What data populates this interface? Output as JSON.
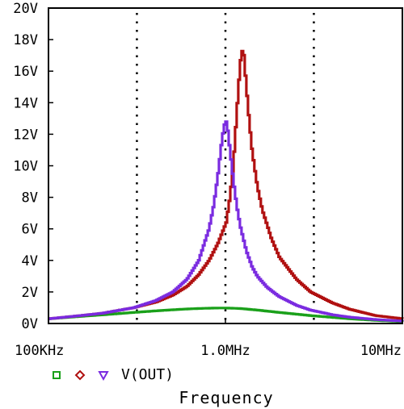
{
  "chart_data": {
    "type": "line",
    "x_scale": "log",
    "x_unit": "Hz",
    "xlim": [
      100000,
      10000000
    ],
    "ylim": [
      0,
      20
    ],
    "y_unit": "V",
    "xlabel": "Frequency",
    "x_ticks": [
      {
        "value": 100000,
        "label": "100KHz"
      },
      {
        "value": 1000000,
        "label": "1.0MHz"
      },
      {
        "value": 10000000,
        "label": "10MHz"
      }
    ],
    "y_ticks": [
      {
        "value": 0,
        "label": "0V"
      },
      {
        "value": 2,
        "label": "2V"
      },
      {
        "value": 4,
        "label": "4V"
      },
      {
        "value": 6,
        "label": "6V"
      },
      {
        "value": 8,
        "label": "8V"
      },
      {
        "value": 10,
        "label": "10V"
      },
      {
        "value": 12,
        "label": "12V"
      },
      {
        "value": 14,
        "label": "14V"
      },
      {
        "value": 16,
        "label": "16V"
      },
      {
        "value": 18,
        "label": "18V"
      },
      {
        "value": 20,
        "label": "20V"
      }
    ],
    "grid_x": [
      316000,
      1000000,
      3160000
    ],
    "legend": {
      "position": "bottom-left",
      "label": "V(OUT)"
    },
    "series": [
      {
        "color": "#1aa01a",
        "marker": "square",
        "x": [
          100000,
          150000,
          200000,
          300000,
          400000,
          500000,
          600000,
          700000,
          800000,
          900000,
          1000000,
          1200000,
          1500000,
          2000000,
          3000000,
          5000000,
          7000000,
          10000000
        ],
        "y": [
          0.3,
          0.45,
          0.55,
          0.7,
          0.8,
          0.87,
          0.92,
          0.95,
          0.97,
          0.98,
          0.98,
          0.95,
          0.85,
          0.7,
          0.5,
          0.3,
          0.2,
          0.12
        ]
      },
      {
        "color": "#b01010",
        "marker": "diamond",
        "x": [
          100000,
          150000,
          200000,
          300000,
          400000,
          500000,
          600000,
          700000,
          800000,
          900000,
          1000000,
          1050000,
          1100000,
          1150000,
          1200000,
          1230000,
          1260000,
          1300000,
          1350000,
          1400000,
          1500000,
          1600000,
          1800000,
          2000000,
          2500000,
          3000000,
          4000000,
          5000000,
          7000000,
          10000000
        ],
        "y": [
          0.3,
          0.5,
          0.65,
          1.0,
          1.35,
          1.8,
          2.35,
          3.1,
          4.0,
          5.1,
          6.4,
          8.0,
          10.2,
          13.5,
          16.5,
          17.3,
          17.0,
          15.0,
          12.8,
          11.0,
          8.7,
          7.2,
          5.4,
          4.2,
          2.8,
          2.0,
          1.3,
          0.9,
          0.5,
          0.3
        ]
      },
      {
        "color": "#7a2be0",
        "marker": "triangle",
        "x": [
          100000,
          150000,
          200000,
          300000,
          400000,
          500000,
          600000,
          700000,
          800000,
          850000,
          900000,
          950000,
          990000,
          1010000,
          1050000,
          1100000,
          1150000,
          1200000,
          1300000,
          1400000,
          1500000,
          1700000,
          2000000,
          2500000,
          3000000,
          4000000,
          5000000,
          7000000,
          10000000
        ],
        "y": [
          0.3,
          0.5,
          0.65,
          1.0,
          1.45,
          2.0,
          2.8,
          4.0,
          6.0,
          7.5,
          9.5,
          11.8,
          12.9,
          12.7,
          11.0,
          9.0,
          7.4,
          6.2,
          4.6,
          3.6,
          3.0,
          2.3,
          1.7,
          1.15,
          0.85,
          0.55,
          0.4,
          0.25,
          0.15
        ]
      }
    ]
  }
}
